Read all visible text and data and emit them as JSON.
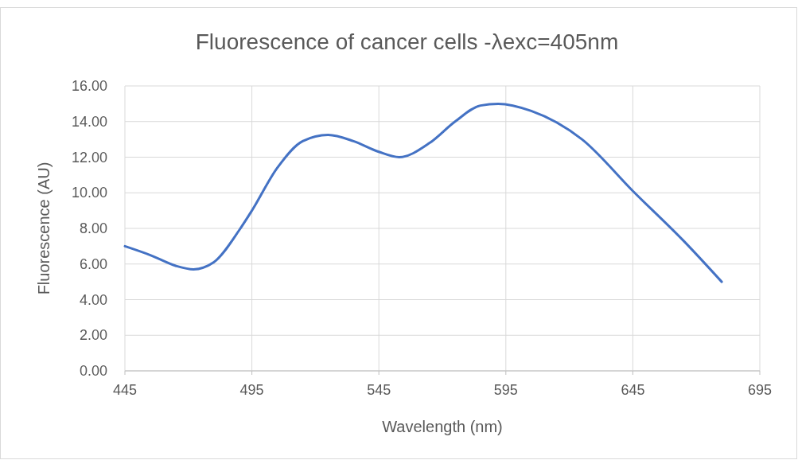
{
  "chart_data": {
    "type": "line",
    "title": "Fluorescence of cancer cells -λexc=405nm",
    "xlabel": "Wavelength (nm)",
    "ylabel": "Fluorescence (AU)",
    "x": [
      445,
      455,
      465,
      472,
      480,
      490,
      495,
      505,
      515,
      525,
      535,
      545,
      553,
      565,
      575,
      585,
      592,
      605,
      625,
      645,
      665,
      680
    ],
    "series": [
      {
        "color": "#4472c4",
        "values": [
          7.0,
          6.5,
          5.9,
          5.7,
          6.1,
          7.9,
          9.0,
          11.4,
          12.9,
          13.25,
          12.9,
          12.3,
          12.0,
          12.8,
          14.0,
          14.9,
          15.0,
          14.6,
          13.0,
          10.1,
          7.3,
          5.0
        ]
      }
    ],
    "xlim": [
      445,
      695
    ],
    "xticks": [
      445,
      495,
      545,
      595,
      645,
      695
    ],
    "ylim": [
      0,
      16
    ],
    "yticks": [
      {
        "value": 0,
        "label": "0.00"
      },
      {
        "value": 2,
        "label": "2.00"
      },
      {
        "value": 4,
        "label": "4.00"
      },
      {
        "value": 6,
        "label": "6.00"
      },
      {
        "value": 8,
        "label": "8.00"
      },
      {
        "value": 10,
        "label": "10.00"
      },
      {
        "value": 12,
        "label": "12.00"
      },
      {
        "value": 14,
        "label": "14.00"
      },
      {
        "value": 16,
        "label": "16.00"
      }
    ],
    "grid": true,
    "marker": "none",
    "line_style": "solid"
  }
}
